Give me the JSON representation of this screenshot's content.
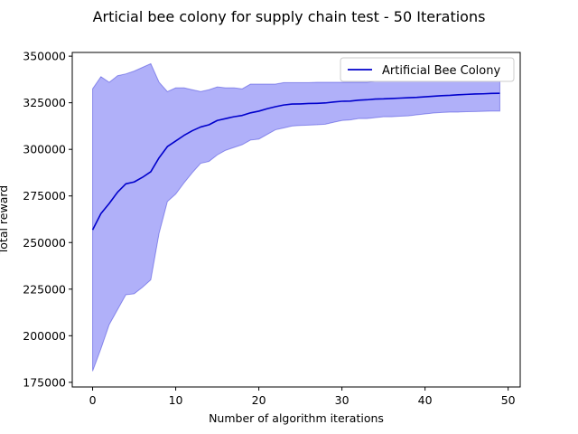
{
  "chart_data": {
    "type": "line",
    "title": "Articial bee colony for supply chain test - 50 Iterations",
    "xlabel": "Number of algorithm iterations",
    "ylabel": "Total reward",
    "xlim": [
      -2.45,
      51.45
    ],
    "ylim": [
      172500,
      352000
    ],
    "x_ticks": [
      0,
      10,
      20,
      30,
      40,
      50
    ],
    "x_tick_labels": [
      "0",
      "10",
      "20",
      "30",
      "40",
      "50"
    ],
    "y_ticks": [
      175000,
      200000,
      225000,
      250000,
      275000,
      300000,
      325000,
      350000
    ],
    "y_tick_labels": [
      "175000",
      "200000",
      "225000",
      "250000",
      "275000",
      "300000",
      "325000",
      "350000"
    ],
    "grid": false,
    "legend_position": "top-right",
    "series": [
      {
        "name": "Artificial Bee Colony",
        "color": "#0000cc",
        "band_color": "#6f6ff4",
        "x": [
          0,
          1,
          2,
          3,
          4,
          5,
          6,
          7,
          8,
          9,
          10,
          11,
          12,
          13,
          14,
          15,
          16,
          17,
          18,
          19,
          20,
          21,
          22,
          23,
          24,
          25,
          26,
          27,
          28,
          29,
          30,
          31,
          32,
          33,
          34,
          35,
          36,
          37,
          38,
          39,
          40,
          41,
          42,
          43,
          44,
          45,
          46,
          47,
          48,
          49
        ],
        "mean": [
          256800,
          265500,
          271000,
          277000,
          281500,
          282500,
          285000,
          288000,
          295500,
          301500,
          304500,
          307500,
          310000,
          312000,
          313200,
          315500,
          316500,
          317500,
          318200,
          319600,
          320500,
          321800,
          322900,
          323800,
          324300,
          324400,
          324600,
          324700,
          324900,
          325400,
          325800,
          325900,
          326400,
          326600,
          327000,
          327100,
          327300,
          327500,
          327700,
          327900,
          328200,
          328500,
          328800,
          329000,
          329300,
          329500,
          329700,
          329800,
          330000,
          330100
        ],
        "upper": [
          332500,
          339000,
          336000,
          339500,
          340500,
          342000,
          344000,
          346000,
          336000,
          331000,
          333000,
          333000,
          332000,
          331000,
          332000,
          333500,
          333000,
          333000,
          332500,
          335000,
          335000,
          335000,
          335000,
          335800,
          335800,
          335800,
          335800,
          336000,
          336000,
          336000,
          336000,
          336000,
          336000,
          336000,
          336500,
          336500,
          336500,
          337000,
          337000,
          337500,
          337500,
          338000,
          338000,
          338000,
          338500,
          338500,
          338500,
          339000,
          339000,
          339000
        ],
        "lower": [
          181000,
          193000,
          206000,
          214000,
          222000,
          222500,
          226000,
          230000,
          255000,
          272000,
          276000,
          282000,
          287500,
          292500,
          293500,
          297000,
          299500,
          301000,
          302500,
          305000,
          305500,
          308000,
          310500,
          311500,
          312500,
          312800,
          313000,
          313200,
          313500,
          314500,
          315500,
          315800,
          316500,
          316500,
          317000,
          317500,
          317500,
          317800,
          318000,
          318500,
          319000,
          319500,
          319800,
          320000,
          320000,
          320200,
          320300,
          320400,
          320500,
          320500
        ]
      }
    ]
  }
}
